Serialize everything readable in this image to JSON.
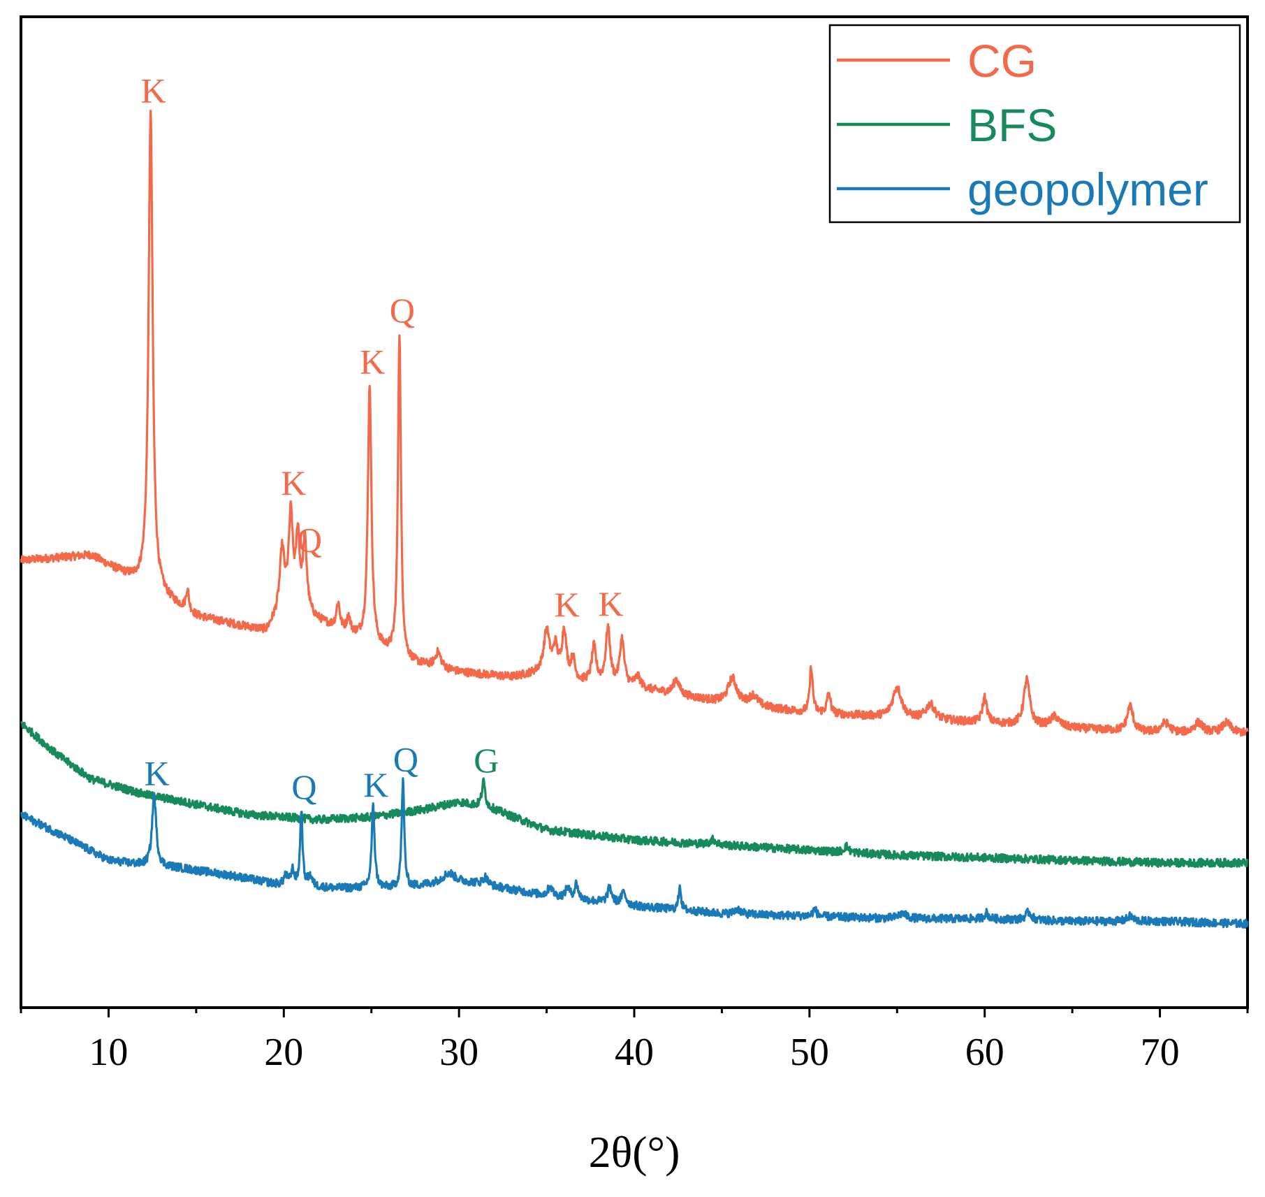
{
  "chart_data": {
    "type": "line",
    "xlabel": "2θ(°)",
    "ylabel": "",
    "xlim": [
      5,
      75
    ],
    "xticks": [
      10,
      20,
      30,
      40,
      50,
      60,
      70
    ],
    "grid": false,
    "legend_position": "top-right",
    "y_units": "relative intensity (stacked, arbitrary)",
    "series": [
      {
        "name": "CG",
        "color": "#f4694a",
        "baseline": [
          [
            5,
            63
          ],
          [
            9,
            64
          ],
          [
            12,
            58
          ],
          [
            15,
            52
          ],
          [
            19,
            49
          ],
          [
            20,
            54
          ],
          [
            22,
            51
          ],
          [
            24,
            48
          ],
          [
            27,
            43
          ],
          [
            30,
            41
          ],
          [
            33,
            40
          ],
          [
            35,
            41
          ],
          [
            37,
            39
          ],
          [
            40,
            38
          ],
          [
            45,
            35
          ],
          [
            50,
            33
          ],
          [
            55,
            32
          ],
          [
            60,
            31
          ],
          [
            65,
            30
          ],
          [
            70,
            29
          ],
          [
            75,
            29
          ]
        ],
        "peaks": [
          [
            12.4,
            94,
            0.14
          ],
          [
            14.5,
            4,
            0.1
          ],
          [
            19.9,
            11,
            0.15
          ],
          [
            20.4,
            18,
            0.14
          ],
          [
            20.8,
            14,
            0.12
          ],
          [
            21.2,
            14,
            0.14
          ],
          [
            23.1,
            5,
            0.12
          ],
          [
            23.7,
            3,
            0.12
          ],
          [
            24.9,
            51,
            0.12
          ],
          [
            26.6,
            64,
            0.1
          ],
          [
            28.8,
            3,
            0.2
          ],
          [
            35.0,
            8,
            0.2
          ],
          [
            35.5,
            5,
            0.15
          ],
          [
            36.0,
            9,
            0.15
          ],
          [
            36.5,
            4,
            0.12
          ],
          [
            37.7,
            7,
            0.15
          ],
          [
            38.5,
            11,
            0.15
          ],
          [
            39.3,
            9,
            0.15
          ],
          [
            40.2,
            2,
            0.2
          ],
          [
            42.4,
            3,
            0.2
          ],
          [
            45.6,
            5,
            0.3
          ],
          [
            46.8,
            2,
            0.3
          ],
          [
            50.1,
            9,
            0.1
          ],
          [
            51.1,
            4,
            0.12
          ],
          [
            55.0,
            6,
            0.3
          ],
          [
            56.9,
            3,
            0.3
          ],
          [
            60.0,
            5,
            0.15
          ],
          [
            62.4,
            9,
            0.2
          ],
          [
            64.0,
            2,
            0.3
          ],
          [
            68.3,
            5,
            0.2
          ],
          [
            70.3,
            2,
            0.3
          ],
          [
            72.2,
            2,
            0.3
          ],
          [
            73.8,
            2,
            0.3
          ]
        ]
      },
      {
        "name": "BFS",
        "color": "#168a5a",
        "baseline": [
          [
            5,
            31
          ],
          [
            7,
            25
          ],
          [
            9,
            20
          ],
          [
            12,
            17
          ],
          [
            15,
            15
          ],
          [
            18,
            13
          ],
          [
            22,
            12
          ],
          [
            25,
            12.5
          ],
          [
            28,
            14
          ],
          [
            30,
            15.5
          ],
          [
            32,
            14
          ],
          [
            35,
            10
          ],
          [
            40,
            8
          ],
          [
            45,
            7
          ],
          [
            50,
            6
          ],
          [
            55,
            5
          ],
          [
            60,
            4.5
          ],
          [
            65,
            4
          ],
          [
            70,
            3.5
          ],
          [
            75,
            3.5
          ]
        ],
        "peaks": [
          [
            31.4,
            5,
            0.12
          ],
          [
            44.5,
            1,
            0.2
          ],
          [
            52.1,
            1.2,
            0.15
          ]
        ]
      },
      {
        "name": "geopolymer",
        "color": "#1a7ab8",
        "baseline": [
          [
            5,
            13
          ],
          [
            7,
            9.5
          ],
          [
            10,
            4
          ],
          [
            12,
            3
          ],
          [
            14,
            2.5
          ],
          [
            17,
            1
          ],
          [
            20,
            -1
          ],
          [
            23,
            -1.5
          ],
          [
            27,
            -1.5
          ],
          [
            29.5,
            0
          ],
          [
            31,
            -0.5
          ],
          [
            35,
            -3
          ],
          [
            40,
            -5
          ],
          [
            45,
            -6.5
          ],
          [
            50,
            -7
          ],
          [
            55,
            -7.5
          ],
          [
            60,
            -7.5
          ],
          [
            65,
            -8
          ],
          [
            70,
            -8
          ],
          [
            75,
            -8.5
          ]
        ],
        "peaks": [
          [
            12.6,
            14,
            0.14
          ],
          [
            20.1,
            2,
            0.12
          ],
          [
            20.5,
            3,
            0.12
          ],
          [
            21.0,
            15,
            0.08
          ],
          [
            21.5,
            2,
            0.15
          ],
          [
            25.1,
            16,
            0.1
          ],
          [
            26.8,
            21,
            0.09
          ],
          [
            29.4,
            1.5,
            0.4
          ],
          [
            31.5,
            1.5,
            0.15
          ],
          [
            35.2,
            2,
            0.15
          ],
          [
            36.2,
            2,
            0.15
          ],
          [
            36.7,
            3,
            0.12
          ],
          [
            38.6,
            3,
            0.15
          ],
          [
            39.4,
            2.5,
            0.15
          ],
          [
            42.6,
            5,
            0.08
          ],
          [
            45.9,
            1,
            0.2
          ],
          [
            50.3,
            1.5,
            0.12
          ],
          [
            55.3,
            1,
            0.3
          ],
          [
            60.1,
            1.2,
            0.12
          ],
          [
            62.5,
            1.5,
            0.2
          ],
          [
            68.3,
            1,
            0.2
          ]
        ]
      }
    ],
    "annotations": [
      {
        "series": "CG",
        "label": "K",
        "x": 12.4
      },
      {
        "series": "CG",
        "label": "K",
        "x": 20.4
      },
      {
        "series": "CG",
        "label": "Q",
        "x": 21.3
      },
      {
        "series": "CG",
        "label": "K",
        "x": 24.9
      },
      {
        "series": "CG",
        "label": "Q",
        "x": 26.6
      },
      {
        "series": "CG",
        "label": "K",
        "x": 36.0
      },
      {
        "series": "CG",
        "label": "K",
        "x": 38.5
      },
      {
        "series": "BFS",
        "label": "G",
        "x": 31.4
      },
      {
        "series": "geopolymer",
        "label": "K",
        "x": 12.6
      },
      {
        "series": "geopolymer",
        "label": "Q",
        "x": 21.0
      },
      {
        "series": "geopolymer",
        "label": "K",
        "x": 25.1
      },
      {
        "series": "geopolymer",
        "label": "Q",
        "x": 26.8
      }
    ]
  }
}
